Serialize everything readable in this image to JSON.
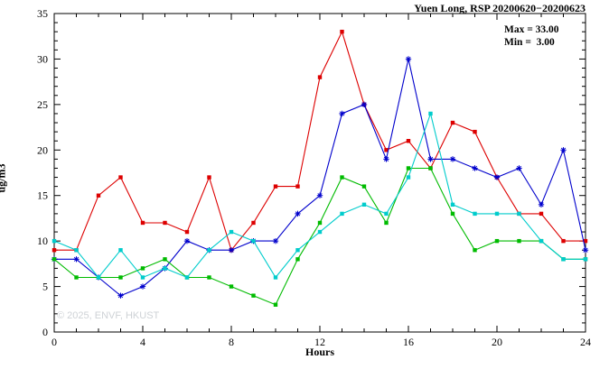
{
  "title": "Yuen Long, RSP 20200620−20200623",
  "watermark": "© 2025, ENVF, HKUST",
  "annotation": {
    "max_label": "Max = 33.00",
    "min_label": "Min =  3.00"
  },
  "chart_data": {
    "type": "line",
    "title": "Yuen Long, RSP 20200620−20200623",
    "xlabel": "Hours",
    "ylabel": "ug/m3",
    "xlim": [
      0,
      24
    ],
    "ylim": [
      0,
      35
    ],
    "grid": false,
    "legend": "none",
    "x_major_ticks": [
      0,
      4,
      8,
      12,
      16,
      20,
      24
    ],
    "y_major_ticks": [
      0,
      5,
      10,
      15,
      20,
      25,
      30,
      35
    ],
    "x": [
      0,
      1,
      2,
      3,
      4,
      5,
      6,
      7,
      8,
      9,
      10,
      11,
      12,
      13,
      14,
      15,
      16,
      17,
      18,
      19,
      20,
      21,
      22,
      23,
      24
    ],
    "series": [
      {
        "name": "red",
        "color": "#dd0000",
        "marker": "square",
        "values": [
          9,
          9,
          15,
          17,
          12,
          12,
          11,
          17,
          9,
          12,
          16,
          16,
          28,
          33,
          25,
          20,
          21,
          18,
          23,
          22,
          17,
          13,
          13,
          10,
          10
        ]
      },
      {
        "name": "blue",
        "color": "#0000cc",
        "marker": "star",
        "values": [
          8,
          8,
          6,
          4,
          5,
          7,
          10,
          9,
          9,
          10,
          10,
          13,
          15,
          24,
          25,
          19,
          30,
          19,
          19,
          18,
          17,
          18,
          14,
          20,
          9
        ]
      },
      {
        "name": "green",
        "color": "#00bb00",
        "marker": "square",
        "values": [
          8,
          6,
          6,
          6,
          7,
          8,
          6,
          6,
          5,
          4,
          3,
          8,
          12,
          17,
          16,
          12,
          18,
          18,
          13,
          9,
          10,
          10,
          10,
          8,
          8
        ]
      },
      {
        "name": "cyan",
        "color": "#00cccc",
        "marker": "square",
        "values": [
          10,
          9,
          6,
          9,
          6,
          7,
          6,
          9,
          11,
          10,
          6,
          9,
          11,
          13,
          14,
          13,
          17,
          24,
          14,
          13,
          13,
          13,
          10,
          8,
          8
        ]
      }
    ],
    "stats": {
      "max": 33.0,
      "min": 3.0
    }
  }
}
